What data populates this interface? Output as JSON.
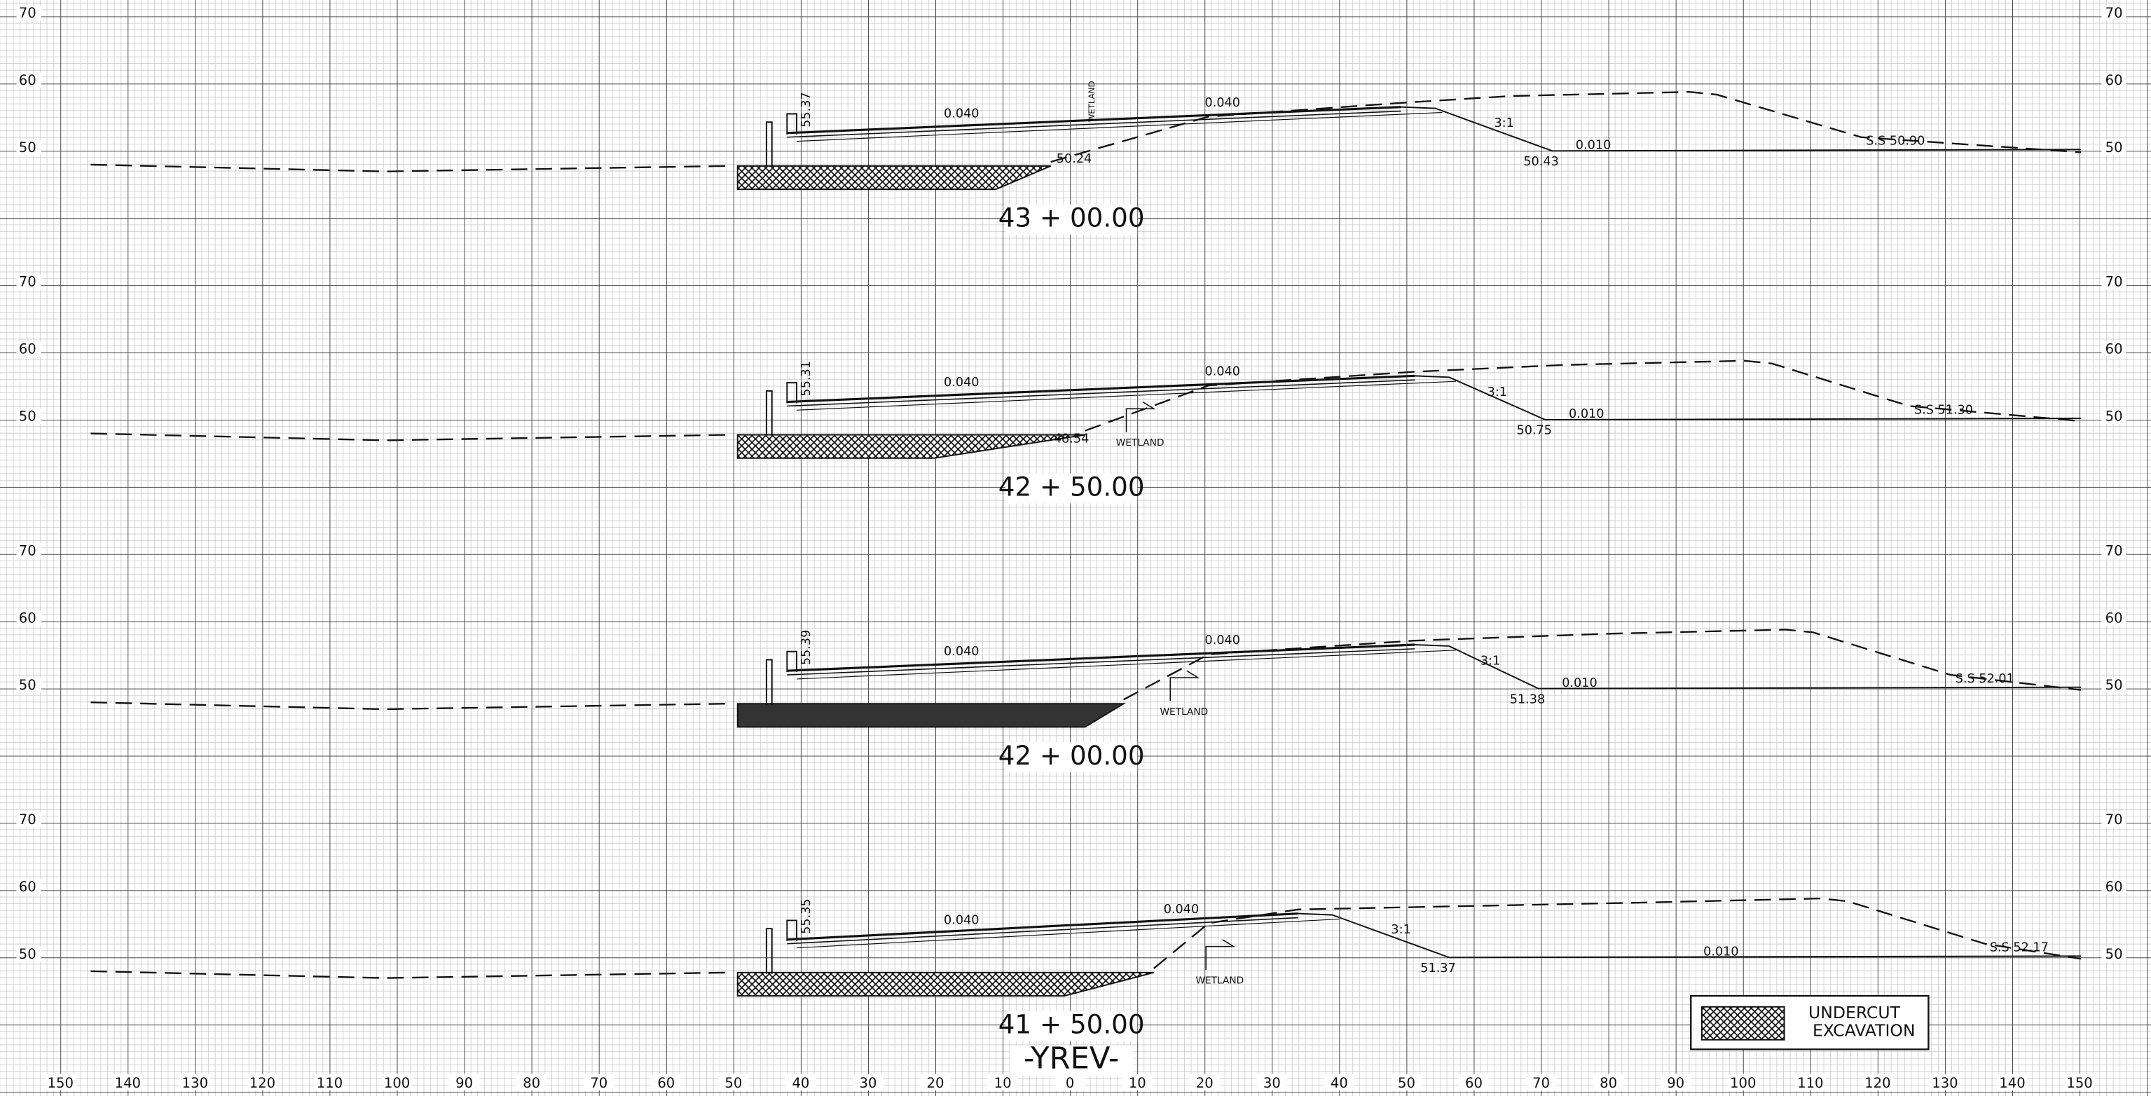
{
  "title": "-YREV-",
  "legend": {
    "line1": "UNDERCUT",
    "line2": "EXCAVATION"
  },
  "x_axis": [
    "150",
    "140",
    "130",
    "120",
    "110",
    "100",
    "90",
    "80",
    "70",
    "60",
    "50",
    "40",
    "30",
    "20",
    "10",
    "0",
    "10",
    "20",
    "30",
    "40",
    "50",
    "60",
    "70",
    "80",
    "90",
    "100",
    "110",
    "120",
    "130",
    "140",
    "150"
  ],
  "sections": [
    {
      "station": "43 + 00.00",
      "elevations": [
        "70",
        "60",
        "50"
      ],
      "offset_label": "55.37",
      "slope_left": "0.040",
      "slope_right": "0.040",
      "wetland": "WETLAND",
      "undercut_elev": "50.24",
      "fill_slope": "3:1",
      "ditch_slope": "0.010",
      "ditch_elev": "50.43",
      "shoulder": "S.S  50.90"
    },
    {
      "station": "42 + 50.00",
      "elevations": [
        "70",
        "60",
        "50"
      ],
      "offset_label": "55.31",
      "slope_left": "0.040",
      "slope_right": "0.040",
      "wetland": "WETLAND",
      "undercut_elev": "48.54",
      "fill_slope": "3:1",
      "ditch_slope": "0.010",
      "ditch_elev": "50.75",
      "shoulder": "S.S  51.30"
    },
    {
      "station": "42 + 00.00",
      "elevations": [
        "70",
        "60",
        "50"
      ],
      "offset_label": "55.39",
      "slope_left": "0.040",
      "slope_right": "0.040",
      "wetland": "WETLAND",
      "fill_slope": "3:1",
      "ditch_slope": "0.010",
      "ditch_elev": "51.38",
      "shoulder": "S.S  52.01"
    },
    {
      "station": "41 + 50.00",
      "elevations": [
        "70",
        "60",
        "50"
      ],
      "offset_label": "55.35",
      "slope_left": "0.040",
      "slope_right": "0.040",
      "wetland": "WETLAND",
      "fill_slope": "3:1",
      "ditch_slope": "0.010",
      "ditch_elev": "51.37",
      "shoulder": "S.S  52.17"
    }
  ]
}
